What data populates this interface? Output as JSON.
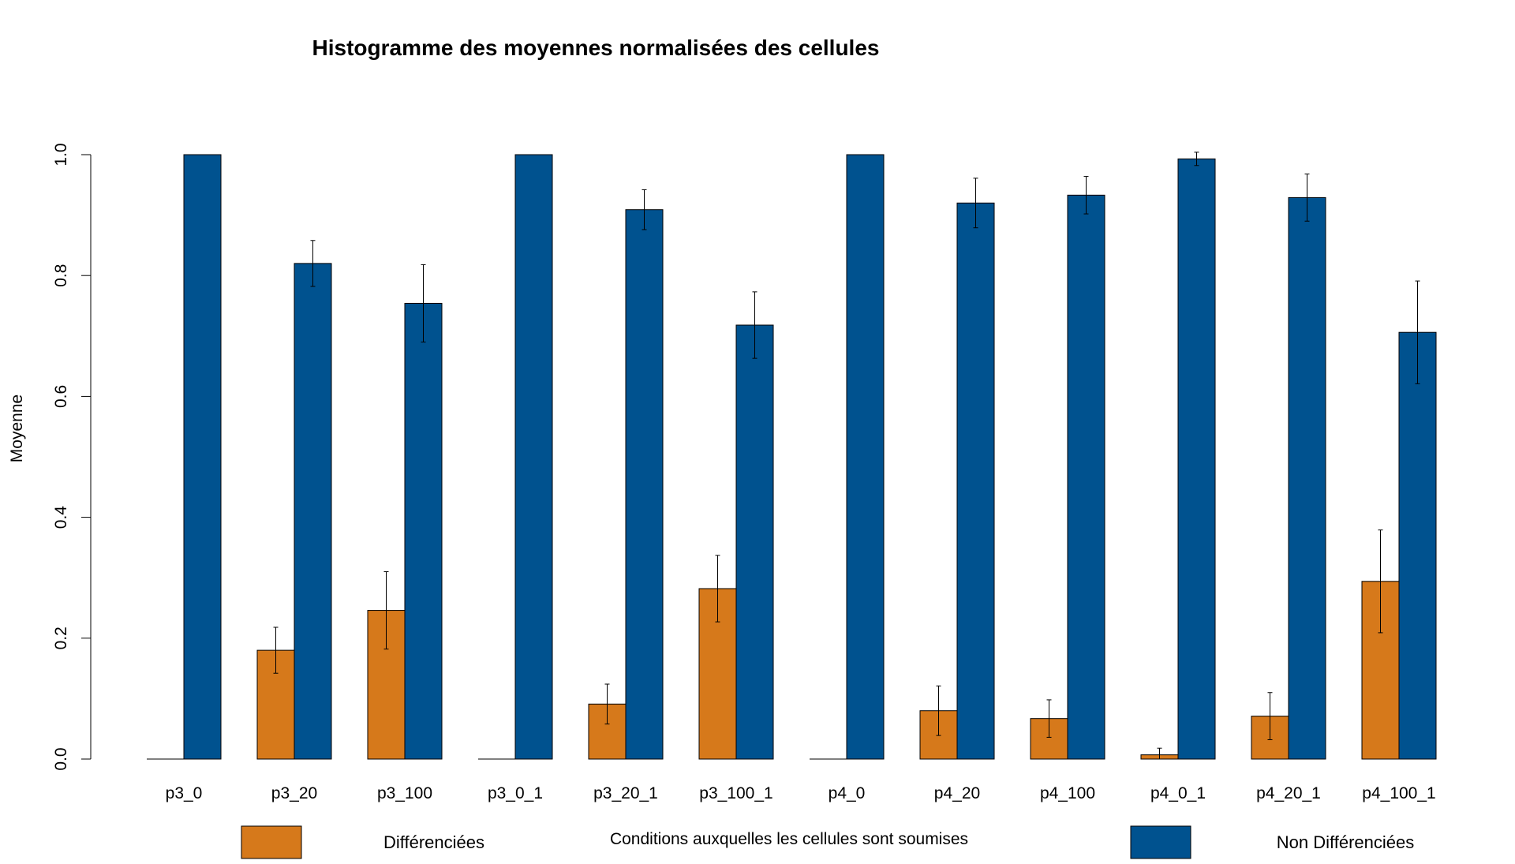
{
  "chart_data": {
    "type": "bar",
    "title": "Histogramme des moyennes normalisées des cellules",
    "xlabel": "Conditions auxquelles les cellules sont soumises",
    "ylabel": "Moyenne",
    "ylim": [
      0,
      1
    ],
    "yticks": [
      "0.0",
      "0.2",
      "0.4",
      "0.6",
      "0.8",
      "1.0"
    ],
    "grid": false,
    "legend_position": "bottom",
    "categories": [
      "p3_0",
      "p3_20",
      "p3_100",
      "p3_0_1",
      "p3_20_1",
      "p3_100_1",
      "p4_0",
      "p4_20",
      "p4_100",
      "p4_0_1",
      "p4_20_1",
      "p4_100_1"
    ],
    "series": [
      {
        "name": "Différenciées",
        "color": "#d6791b",
        "values": [
          0.0,
          0.18,
          0.246,
          0.0,
          0.091,
          0.282,
          0.0,
          0.08,
          0.067,
          0.007,
          0.071,
          0.294
        ],
        "error": [
          0.0,
          0.038,
          0.064,
          0.0,
          0.033,
          0.055,
          0.0,
          0.041,
          0.031,
          0.011,
          0.039,
          0.085
        ]
      },
      {
        "name": "Non Différenciées",
        "color": "#00528f",
        "values": [
          1.0,
          0.82,
          0.754,
          1.0,
          0.909,
          0.718,
          1.0,
          0.92,
          0.933,
          0.993,
          0.929,
          0.706
        ],
        "error": [
          0.0,
          0.038,
          0.064,
          0.0,
          0.033,
          0.055,
          0.0,
          0.041,
          0.031,
          0.011,
          0.039,
          0.085
        ]
      }
    ]
  }
}
